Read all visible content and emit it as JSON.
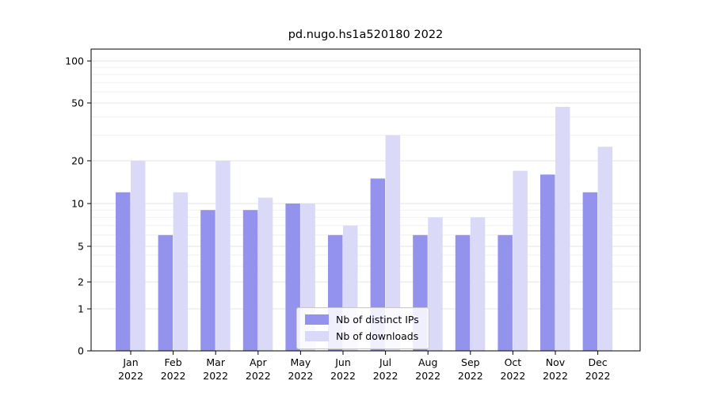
{
  "chart_data": {
    "type": "bar",
    "title": "pd.nugo.hs1a520180 2022",
    "categories": [
      "Jan 2022",
      "Feb 2022",
      "Mar 2022",
      "Apr 2022",
      "May 2022",
      "Jun 2022",
      "Jul 2022",
      "Aug 2022",
      "Sep 2022",
      "Oct 2022",
      "Nov 2022",
      "Dec 2022"
    ],
    "series": [
      {
        "name": "Nb of distinct IPs",
        "color": "#9393ed",
        "values": [
          12,
          6,
          9,
          9,
          10,
          6,
          15,
          6,
          6,
          6,
          16,
          12
        ]
      },
      {
        "name": "Nb of downloads",
        "color": "#dadaf8",
        "values": [
          20,
          12,
          20,
          11,
          10,
          7,
          30,
          8,
          8,
          17,
          47,
          25
        ]
      }
    ],
    "yscale": "symlog",
    "ylim": [
      0,
      100
    ],
    "yticks": [
      0,
      1,
      2,
      5,
      10,
      20,
      50,
      100
    ],
    "minor_yticks": [
      3,
      4,
      6,
      7,
      8,
      9,
      30,
      40,
      60,
      70,
      80,
      90
    ],
    "grid": "horizontal",
    "legend_position": "lower-center"
  }
}
